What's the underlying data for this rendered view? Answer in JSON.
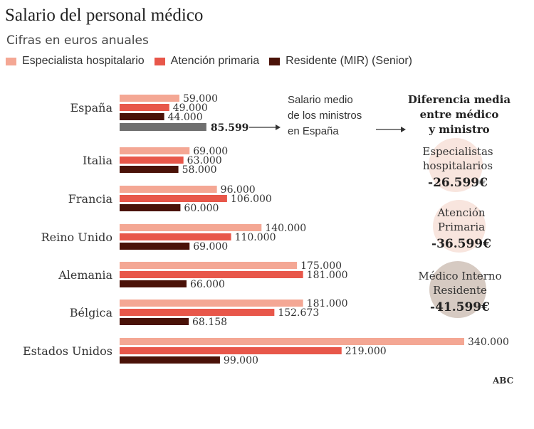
{
  "title": "Salario del personal médico",
  "subtitle": "Cifras en euros anuales",
  "source": "ABC",
  "colors": {
    "especialista": "#f4a794",
    "atencion": "#e8574a",
    "residente": "#4a1208",
    "ministros": "#6f6f6f",
    "circle": "#f6dcd3",
    "circle_dark": "#c8b8ad"
  },
  "chart_data": {
    "type": "bar",
    "orientation": "horizontal",
    "categories": [
      "España",
      "Italia",
      "Francia",
      "Reino Unido",
      "Alemania",
      "Bélgica",
      "Estados Unidos"
    ],
    "series": [
      {
        "name": "Especialista hospitalario",
        "values": [
          59000,
          69000,
          96000,
          140000,
          175000,
          181000,
          340000
        ],
        "labels": [
          "59.000",
          "69.000",
          "96.000",
          "140.000",
          "175.000",
          "181.000",
          "340.000"
        ]
      },
      {
        "name": "Atención primaria",
        "values": [
          49000,
          63000,
          106000,
          110000,
          181000,
          152673,
          219000
        ],
        "labels": [
          "49.000",
          "63.000",
          "106.000",
          "110.000",
          "181.000",
          "152.673",
          "219.000"
        ]
      },
      {
        "name": "Residente (MIR) (Senior)",
        "values": [
          44000,
          58000,
          60000,
          69000,
          66000,
          68158,
          99000
        ],
        "labels": [
          "44.000",
          "58.000",
          "60.000",
          "69.000",
          "66.000",
          "68.158",
          "99.000"
        ]
      }
    ],
    "ministros": {
      "category": "España",
      "value": 85599,
      "label": "85.599"
    },
    "legend_placement": "top",
    "grid": false,
    "annotations": {
      "ministros_note": [
        "Salario medio",
        "de los ministros",
        "en España"
      ],
      "diferencia_heading": [
        "Diferencia media",
        "entre médico",
        "y ministro"
      ],
      "diferencias": [
        {
          "lines": [
            "Especialistas",
            "hospitalarios"
          ],
          "value": "-26.599€"
        },
        {
          "lines": [
            "Atención",
            "Primaria"
          ],
          "value": "-36.599€"
        },
        {
          "lines": [
            "Médico Interno",
            "Residente"
          ],
          "value": "-41.599€"
        }
      ]
    }
  }
}
